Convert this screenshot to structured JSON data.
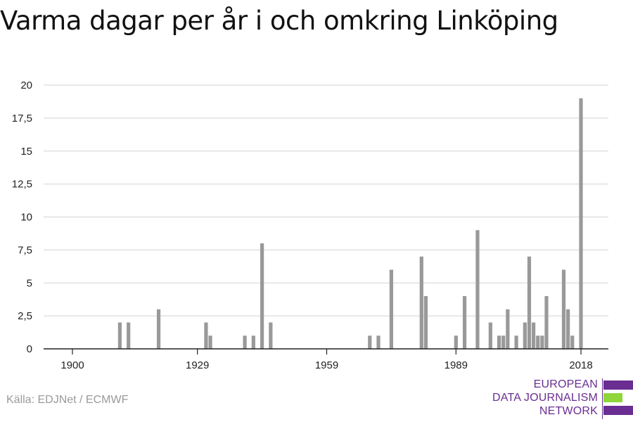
{
  "chart_data": {
    "type": "bar",
    "title": "Varma dagar per år i och omkring Linköping",
    "xlabel": "",
    "ylabel": "",
    "xlim": [
      1900,
      2018
    ],
    "ylim": [
      0,
      20
    ],
    "yticks": [
      "0",
      "2,5",
      "5",
      "7,5",
      "10",
      "12,5",
      "15",
      "17,5",
      "20"
    ],
    "ytick_values": [
      0,
      2.5,
      5,
      7.5,
      10,
      12.5,
      15,
      17.5,
      20
    ],
    "xticks": [
      1900,
      1929,
      1959,
      1989,
      2018
    ],
    "grid": true,
    "bar_color": "#999999",
    "x": [
      1911,
      1913,
      1920,
      1931,
      1932,
      1940,
      1942,
      1944,
      1946,
      1969,
      1971,
      1974,
      1981,
      1982,
      1989,
      1991,
      1994,
      1997,
      1999,
      2000,
      2001,
      2003,
      2005,
      2006,
      2007,
      2008,
      2009,
      2010,
      2014,
      2015,
      2016,
      2018
    ],
    "values": [
      2,
      2,
      3,
      2,
      1,
      1,
      1,
      8,
      2,
      1,
      1,
      6,
      7,
      4,
      1,
      4,
      9,
      2,
      1,
      1,
      3,
      1,
      2,
      7,
      2,
      1,
      1,
      4,
      6,
      3,
      1,
      19
    ]
  },
  "source": "Källa: EDJNet / ECMWF",
  "logo": {
    "line1": "EUROPEAN",
    "line2": "DATA JOURNALISM",
    "line3": "NETWORK",
    "colors": {
      "purple": "#6a2d91",
      "green": "#8fd63a"
    }
  }
}
